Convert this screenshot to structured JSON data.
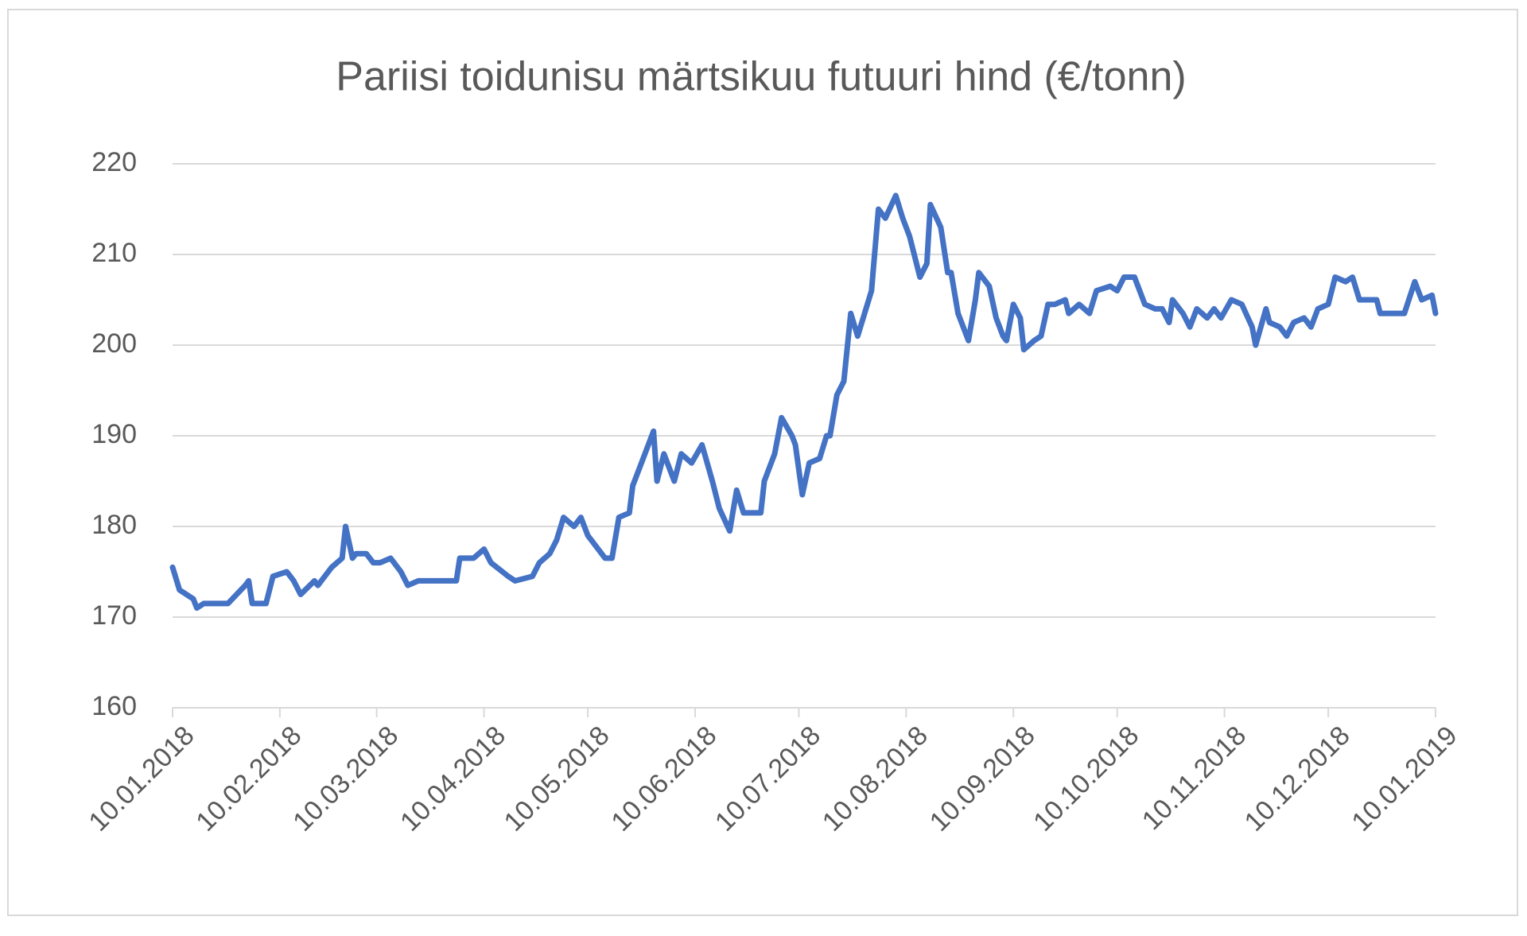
{
  "chart_data": {
    "type": "line",
    "title": "Pariisi toidunisu märtsikuu futuuri hind (€/tonn)",
    "color": "#4472c4",
    "grid": true,
    "ylim": [
      160,
      220
    ],
    "yticks": [
      160,
      170,
      180,
      190,
      200,
      210,
      220
    ],
    "xlim": [
      "10.01.2018",
      "10.01.2019"
    ],
    "xticks": [
      "10.01.2018",
      "10.02.2018",
      "10.03.2018",
      "10.04.2018",
      "10.05.2018",
      "10.06.2018",
      "10.07.2018",
      "10.08.2018",
      "10.09.2018",
      "10.10.2018",
      "10.11.2018",
      "10.12.2018",
      "10.01.2019"
    ],
    "x": [
      "10.01.2018",
      "12.01.2018",
      "16.01.2018",
      "17.01.2018",
      "19.01.2018",
      "26.01.2018",
      "31.01.2018",
      "01.02.2018",
      "02.02.2018",
      "06.02.2018",
      "08.02.2018",
      "12.02.2018",
      "14.02.2018",
      "16.02.2018",
      "20.02.2018",
      "21.02.2018",
      "25.02.2018",
      "28.02.2018",
      "01.03.2018",
      "03.03.2018",
      "04.03.2018",
      "07.03.2018",
      "09.03.2018",
      "11.03.2018",
      "14.03.2018",
      "17.03.2018",
      "19.03.2018",
      "22.03.2018",
      "26.03.2018",
      "02.04.2018",
      "03.04.2018",
      "07.04.2018",
      "10.04.2018",
      "12.04.2018",
      "17.04.2018",
      "19.04.2018",
      "24.04.2018",
      "26.04.2018",
      "29.04.2018",
      "01.05.2018",
      "03.05.2018",
      "06.05.2018",
      "08.05.2018",
      "10.05.2018",
      "15.05.2018",
      "17.05.2018",
      "19.05.2018",
      "22.05.2018",
      "23.05.2018",
      "26.05.2018",
      "29.05.2018",
      "30.05.2018",
      "01.06.2018",
      "04.06.2018",
      "06.06.2018",
      "09.06.2018",
      "12.06.2018",
      "15.06.2018",
      "17.06.2018",
      "20.06.2018",
      "22.06.2018",
      "24.06.2018",
      "29.06.2018",
      "30.06.2018",
      "03.07.2018",
      "05.07.2018",
      "08.07.2018",
      "09.07.2018",
      "11.07.2018",
      "13.07.2018",
      "16.07.2018",
      "18.07.2018",
      "19.07.2018",
      "21.07.2018",
      "23.07.2018",
      "25.07.2018",
      "27.07.2018",
      "31.07.2018",
      "02.08.2018",
      "04.08.2018",
      "07.08.2018",
      "09.08.2018",
      "11.08.2018",
      "14.08.2018",
      "16.08.2018",
      "17.08.2018",
      "20.08.2018",
      "22.08.2018",
      "23.08.2018",
      "25.08.2018",
      "28.08.2018",
      "30.08.2018",
      "31.08.2018",
      "03.09.2018",
      "05.09.2018",
      "07.09.2018",
      "08.09.2018",
      "10.09.2018",
      "12.09.2018",
      "13.09.2018",
      "16.09.2018",
      "18.09.2018",
      "20.09.2018",
      "22.09.2018",
      "25.09.2018",
      "26.09.2018",
      "29.09.2018",
      "02.10.2018",
      "04.10.2018",
      "08.10.2018",
      "10.10.2018",
      "12.10.2018",
      "15.10.2018",
      "18.10.2018",
      "21.10.2018",
      "23.10.2018",
      "25.10.2018",
      "26.10.2018",
      "29.10.2018",
      "31.10.2018",
      "02.11.2018",
      "05.11.2018",
      "07.11.2018",
      "09.11.2018",
      "12.11.2018",
      "15.11.2018",
      "18.11.2018",
      "19.11.2018",
      "22.11.2018",
      "23.11.2018",
      "26.11.2018",
      "28.11.2018",
      "30.11.2018",
      "03.12.2018",
      "05.12.2018",
      "07.12.2018",
      "10.12.2018",
      "12.12.2018",
      "15.12.2018",
      "17.12.2018",
      "19.12.2018",
      "22.12.2018",
      "24.12.2018",
      "25.12.2018",
      "29.12.2018",
      "01.01.2019",
      "04.01.2019",
      "06.01.2019",
      "09.01.2019",
      "10.01.2019"
    ],
    "values": [
      175.5,
      173,
      172,
      171,
      171.5,
      171.5,
      173.5,
      174,
      171.5,
      171.5,
      174.5,
      175,
      174,
      172.5,
      174,
      173.5,
      175.5,
      176.5,
      180,
      176.5,
      177,
      177,
      176,
      176,
      176.5,
      175,
      173.5,
      174,
      174,
      174,
      176.5,
      176.5,
      177.5,
      176,
      174.5,
      174,
      174.5,
      176,
      177,
      178.5,
      181,
      180,
      181,
      179,
      176.5,
      176.5,
      181,
      181.5,
      184.5,
      187.5,
      190.5,
      185,
      188,
      185,
      188,
      187,
      189,
      185,
      182,
      179.5,
      184,
      181.5,
      181.5,
      185,
      188,
      192,
      190,
      189,
      183.5,
      187,
      187.5,
      190,
      190,
      194.5,
      196,
      203.5,
      201,
      206,
      215,
      214,
      216.5,
      214,
      212,
      207.5,
      209,
      215.5,
      213,
      208,
      208,
      203.5,
      200.5,
      205,
      208,
      206.5,
      203,
      201,
      200.5,
      204.5,
      203,
      199.5,
      200.5,
      201,
      204.5,
      204.5,
      205,
      203.5,
      204.5,
      203.5,
      206,
      206.5,
      206,
      207.5,
      207.5,
      204.5,
      204,
      204,
      202.5,
      205,
      203.5,
      202,
      204,
      203,
      204,
      203,
      205,
      204.5,
      202,
      200,
      204,
      202.5,
      202,
      201,
      202.5,
      203,
      202,
      204,
      204.5,
      207.5,
      207,
      207.5,
      205,
      205,
      205,
      203.5,
      203.5,
      203.5,
      207,
      205,
      205.5,
      203.5
    ]
  }
}
